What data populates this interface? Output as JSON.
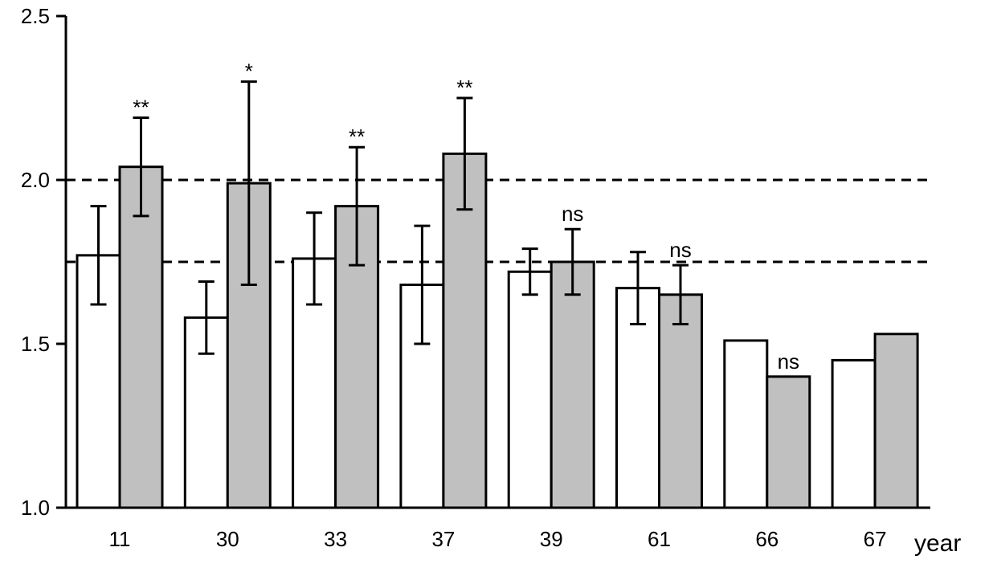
{
  "chart_data": {
    "type": "bar",
    "xlabel": "year",
    "ylabel": "",
    "title": "",
    "ylim": [
      1.0,
      2.5
    ],
    "yticks": [
      "1.0",
      "1.5",
      "2.0",
      "2.5"
    ],
    "categories": [
      "11",
      "30",
      "33",
      "37",
      "39",
      "61",
      "66",
      "67"
    ],
    "series": [
      {
        "fill": "#ffffff",
        "values": [
          1.77,
          1.58,
          1.76,
          1.68,
          1.72,
          1.67,
          1.51,
          1.45
        ],
        "err_low": [
          1.62,
          1.47,
          1.62,
          1.5,
          1.65,
          1.56,
          null,
          null
        ],
        "err_high": [
          1.92,
          1.69,
          1.9,
          1.86,
          1.79,
          1.78,
          null,
          null
        ]
      },
      {
        "fill": "#c0c0c0",
        "values": [
          2.04,
          1.99,
          1.92,
          2.08,
          1.75,
          1.65,
          1.4,
          1.53
        ],
        "err_low": [
          1.89,
          1.68,
          1.74,
          1.91,
          1.65,
          1.56,
          null,
          null
        ],
        "err_high": [
          2.19,
          2.3,
          2.1,
          2.25,
          1.85,
          1.74,
          null,
          null
        ]
      }
    ],
    "significance": [
      "**",
      "*",
      "**",
      "**",
      "ns",
      "ns",
      "ns",
      ""
    ],
    "reference_lines": [
      2.0,
      1.75
    ],
    "grid": false
  }
}
